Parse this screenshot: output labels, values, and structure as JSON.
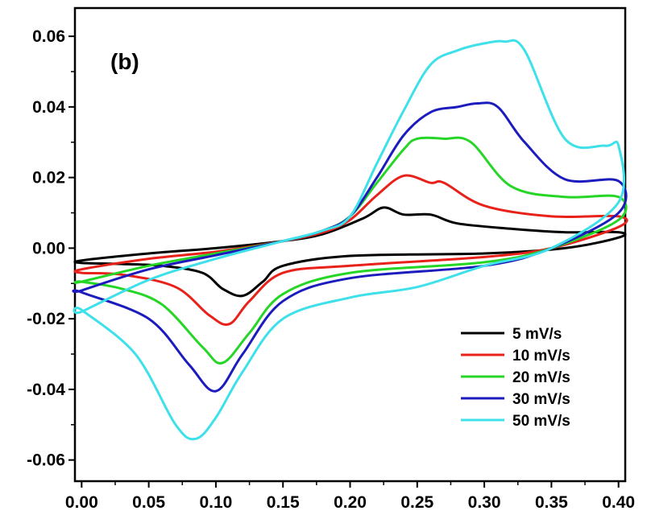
{
  "chart_data": {
    "type": "line",
    "panel_label": "(b)",
    "xlabel": "",
    "ylabel": "",
    "xlim": [
      -0.005,
      0.405
    ],
    "ylim": [
      -0.066,
      0.068
    ],
    "x_ticks": [
      0.0,
      0.05,
      0.1,
      0.15,
      0.2,
      0.25,
      0.3,
      0.35,
      0.4
    ],
    "x_tick_labels": [
      "0.00",
      "0.05",
      "0.10",
      "0.15",
      "0.20",
      "0.25",
      "0.30",
      "0.35",
      "0.40"
    ],
    "y_ticks": [
      -0.06,
      -0.04,
      -0.02,
      0.0,
      0.02,
      0.04,
      0.06
    ],
    "y_tick_labels": [
      "-0.06",
      "-0.04",
      "-0.02",
      "0.00",
      "0.02",
      "0.04",
      "0.06"
    ],
    "grid": false,
    "legend_position": "bottom-right",
    "series": [
      {
        "name": "5 mV/s",
        "color": "#000000",
        "x": [
          0.0,
          0.05,
          0.1,
          0.15,
          0.18,
          0.21,
          0.225,
          0.24,
          0.26,
          0.28,
          0.32,
          0.36,
          0.4,
          0.4,
          0.36,
          0.3,
          0.2,
          0.15,
          0.135,
          0.12,
          0.105,
          0.09,
          0.06,
          0.03,
          0.0
        ],
        "y": [
          -0.0035,
          -0.0015,
          0.0,
          0.002,
          0.004,
          0.0085,
          0.0115,
          0.0095,
          0.0095,
          0.007,
          0.0055,
          0.0045,
          0.0045,
          0.003,
          0.0,
          -0.0015,
          -0.0022,
          -0.005,
          -0.0095,
          -0.0135,
          -0.0115,
          -0.007,
          -0.005,
          -0.0045,
          -0.0042
        ]
      },
      {
        "name": "10 mV/s",
        "color": "#e8211a",
        "x": [
          0.0,
          0.05,
          0.1,
          0.15,
          0.18,
          0.2,
          0.22,
          0.24,
          0.26,
          0.27,
          0.3,
          0.35,
          0.4,
          0.4,
          0.35,
          0.3,
          0.2,
          0.15,
          0.125,
          0.11,
          0.095,
          0.07,
          0.03,
          0.0
        ],
        "y": [
          -0.006,
          -0.003,
          -0.001,
          0.002,
          0.0045,
          0.008,
          0.015,
          0.0205,
          0.0185,
          0.0185,
          0.012,
          0.009,
          0.009,
          0.006,
          0.0,
          -0.0025,
          -0.005,
          -0.007,
          -0.015,
          -0.0215,
          -0.019,
          -0.011,
          -0.0075,
          -0.007
        ]
      },
      {
        "name": "20 mV/s",
        "color": "#26d626",
        "x": [
          0.0,
          0.05,
          0.1,
          0.15,
          0.18,
          0.2,
          0.22,
          0.24,
          0.25,
          0.27,
          0.29,
          0.32,
          0.36,
          0.4,
          0.4,
          0.35,
          0.3,
          0.2,
          0.15,
          0.125,
          0.105,
          0.09,
          0.06,
          0.03,
          0.0
        ],
        "y": [
          -0.0095,
          -0.005,
          -0.0015,
          0.002,
          0.005,
          0.009,
          0.0185,
          0.028,
          0.031,
          0.031,
          0.03,
          0.0175,
          0.0145,
          0.0145,
          0.008,
          0.0,
          -0.004,
          -0.007,
          -0.013,
          -0.024,
          -0.0325,
          -0.028,
          -0.016,
          -0.0115,
          -0.0095
        ]
      },
      {
        "name": "30 mV/s",
        "color": "#1c1cbe",
        "x": [
          0.0,
          0.05,
          0.1,
          0.15,
          0.18,
          0.2,
          0.22,
          0.24,
          0.26,
          0.28,
          0.295,
          0.31,
          0.33,
          0.36,
          0.4,
          0.4,
          0.35,
          0.3,
          0.2,
          0.15,
          0.12,
          0.1,
          0.08,
          0.05,
          0.0
        ],
        "y": [
          -0.012,
          -0.006,
          -0.002,
          0.002,
          0.005,
          0.009,
          0.02,
          0.032,
          0.0385,
          0.04,
          0.041,
          0.04,
          0.03,
          0.0195,
          0.019,
          0.01,
          0.0,
          -0.005,
          -0.0085,
          -0.015,
          -0.03,
          -0.0405,
          -0.033,
          -0.02,
          -0.0125
        ]
      },
      {
        "name": "50 mV/s",
        "color": "#3ee0ea",
        "x": [
          0.0,
          0.05,
          0.1,
          0.15,
          0.18,
          0.2,
          0.22,
          0.24,
          0.26,
          0.28,
          0.3,
          0.315,
          0.33,
          0.36,
          0.39,
          0.4,
          0.4,
          0.35,
          0.3,
          0.25,
          0.2,
          0.15,
          0.12,
          0.1,
          0.085,
          0.07,
          0.04,
          0.0
        ],
        "y": [
          -0.018,
          -0.009,
          -0.003,
          0.002,
          0.005,
          0.009,
          0.024,
          0.039,
          0.052,
          0.056,
          0.058,
          0.0585,
          0.056,
          0.031,
          0.029,
          0.029,
          0.013,
          0.0,
          -0.005,
          -0.011,
          -0.014,
          -0.02,
          -0.035,
          -0.048,
          -0.054,
          -0.05,
          -0.03,
          -0.0175
        ]
      }
    ]
  }
}
